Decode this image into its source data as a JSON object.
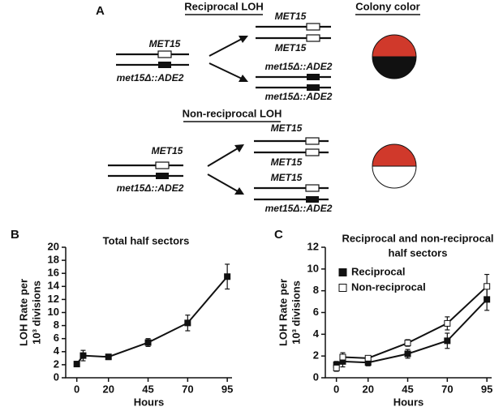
{
  "panel_a": {
    "label": "A",
    "headers": [
      "Reciprocal LOH",
      "Colony color",
      "Non-reciprocal LOH"
    ],
    "reciprocal": {
      "parent": [
        "MET15",
        "met15Δ::ADE2"
      ],
      "progeny": [
        "MET15",
        "MET15",
        "met15Δ::ADE2",
        "met15Δ::ADE2"
      ]
    },
    "nonreciprocal": {
      "parent": [
        "MET15",
        "met15Δ::ADE2"
      ],
      "progeny": [
        "MET15",
        "MET15",
        "MET15",
        "met15Δ::ADE2"
      ]
    }
  },
  "chart_data": [
    {
      "type": "line",
      "panel_label": "B",
      "title": [
        "Total half sectors"
      ],
      "ylabel": [
        "LOH Rate per",
        "10³ divisions"
      ],
      "xlabel": "Hours",
      "x": [
        0,
        4,
        20,
        45,
        70,
        95
      ],
      "values": [
        2.1,
        3.4,
        3.2,
        5.4,
        8.4,
        15.5
      ],
      "errors": [
        0.4,
        0.8,
        0.4,
        0.6,
        1.2,
        1.9
      ],
      "color": "#111111",
      "marker_fill": "#111111",
      "xlim": [
        -7,
        98
      ],
      "xticks": [
        0,
        20,
        45,
        70,
        95
      ],
      "ylim": [
        0,
        20
      ],
      "yticks": [
        0,
        2,
        4,
        6,
        8,
        10,
        12,
        14,
        16,
        18,
        20
      ]
    },
    {
      "type": "line",
      "panel_label": "C",
      "title": [
        "Reciprocal and non-reciprocal",
        "half sectors"
      ],
      "ylabel": [
        "LOH Rate per",
        "10³ divisions"
      ],
      "xlabel": "Hours",
      "x": [
        0,
        4,
        20,
        45,
        70,
        95
      ],
      "series": [
        {
          "name": "Reciprocal",
          "color": "#111111",
          "marker_fill": "#111111",
          "values": [
            1.2,
            1.5,
            1.4,
            2.2,
            3.4,
            7.2
          ],
          "errors": [
            0.3,
            0.5,
            0.3,
            0.4,
            0.7,
            1.0
          ]
        },
        {
          "name": "Non-reciprocal",
          "color": "#111111",
          "marker_fill": "#ffffff",
          "values": [
            0.9,
            1.9,
            1.8,
            3.2,
            5.0,
            8.4
          ],
          "errors": [
            0.3,
            0.4,
            0.2,
            0.3,
            0.6,
            1.1
          ]
        }
      ],
      "xlim": [
        -7,
        98
      ],
      "xticks": [
        0,
        20,
        45,
        70,
        95
      ],
      "ylim": [
        0,
        12
      ],
      "yticks": [
        0,
        2,
        4,
        6,
        8,
        10,
        12
      ]
    }
  ]
}
